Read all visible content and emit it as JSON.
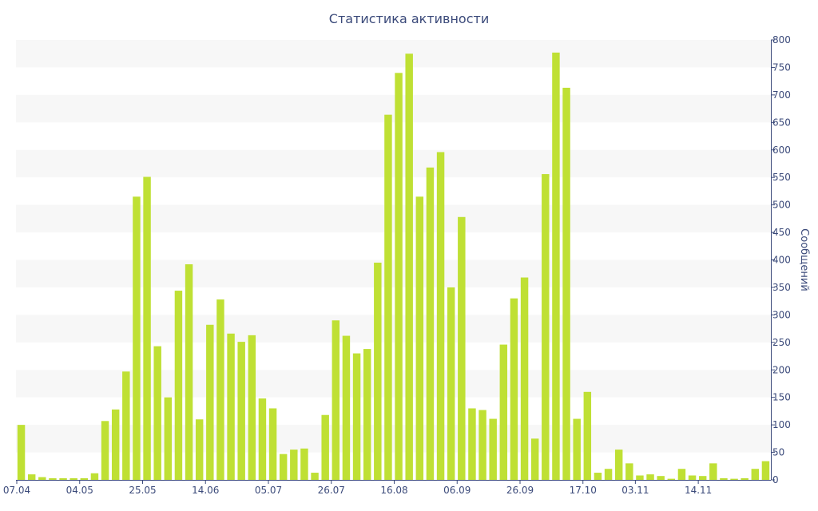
{
  "chart_data": {
    "type": "bar",
    "title": "Статистика активности",
    "ylabel": "Сообщений",
    "y_axis_side": "right",
    "ylim": [
      0,
      800
    ],
    "yticks": [
      0,
      50,
      100,
      150,
      200,
      250,
      300,
      350,
      400,
      450,
      500,
      550,
      600,
      650,
      700,
      750,
      800
    ],
    "grid": "alternating horizontal bands",
    "x_tick_labels": [
      {
        "label": "07.04",
        "index": 0
      },
      {
        "label": "04.05",
        "index": 6
      },
      {
        "label": "25.05",
        "index": 12
      },
      {
        "label": "14.06",
        "index": 18
      },
      {
        "label": "05.07",
        "index": 24
      },
      {
        "label": "26.07",
        "index": 30
      },
      {
        "label": "16.08",
        "index": 36
      },
      {
        "label": "06.09",
        "index": 42
      },
      {
        "label": "26.09",
        "index": 48
      },
      {
        "label": "17.10",
        "index": 54
      },
      {
        "label": "03.11",
        "index": 59
      },
      {
        "label": "14.11",
        "index": 65
      }
    ],
    "values": [
      100,
      10,
      5,
      3,
      3,
      3,
      3,
      12,
      107,
      128,
      197,
      515,
      551,
      243,
      150,
      344,
      392,
      110,
      282,
      328,
      266,
      251,
      263,
      148,
      130,
      47,
      55,
      57,
      13,
      118,
      290,
      262,
      230,
      238,
      395,
      664,
      740,
      775,
      515,
      568,
      596,
      350,
      478,
      130,
      127,
      111,
      246,
      330,
      368,
      75,
      556,
      777,
      713,
      111,
      160,
      13,
      20,
      55,
      30,
      8,
      10,
      7,
      2,
      20,
      8,
      7,
      30,
      3,
      2,
      3,
      20,
      34
    ],
    "bar_color": "#bfe034"
  }
}
